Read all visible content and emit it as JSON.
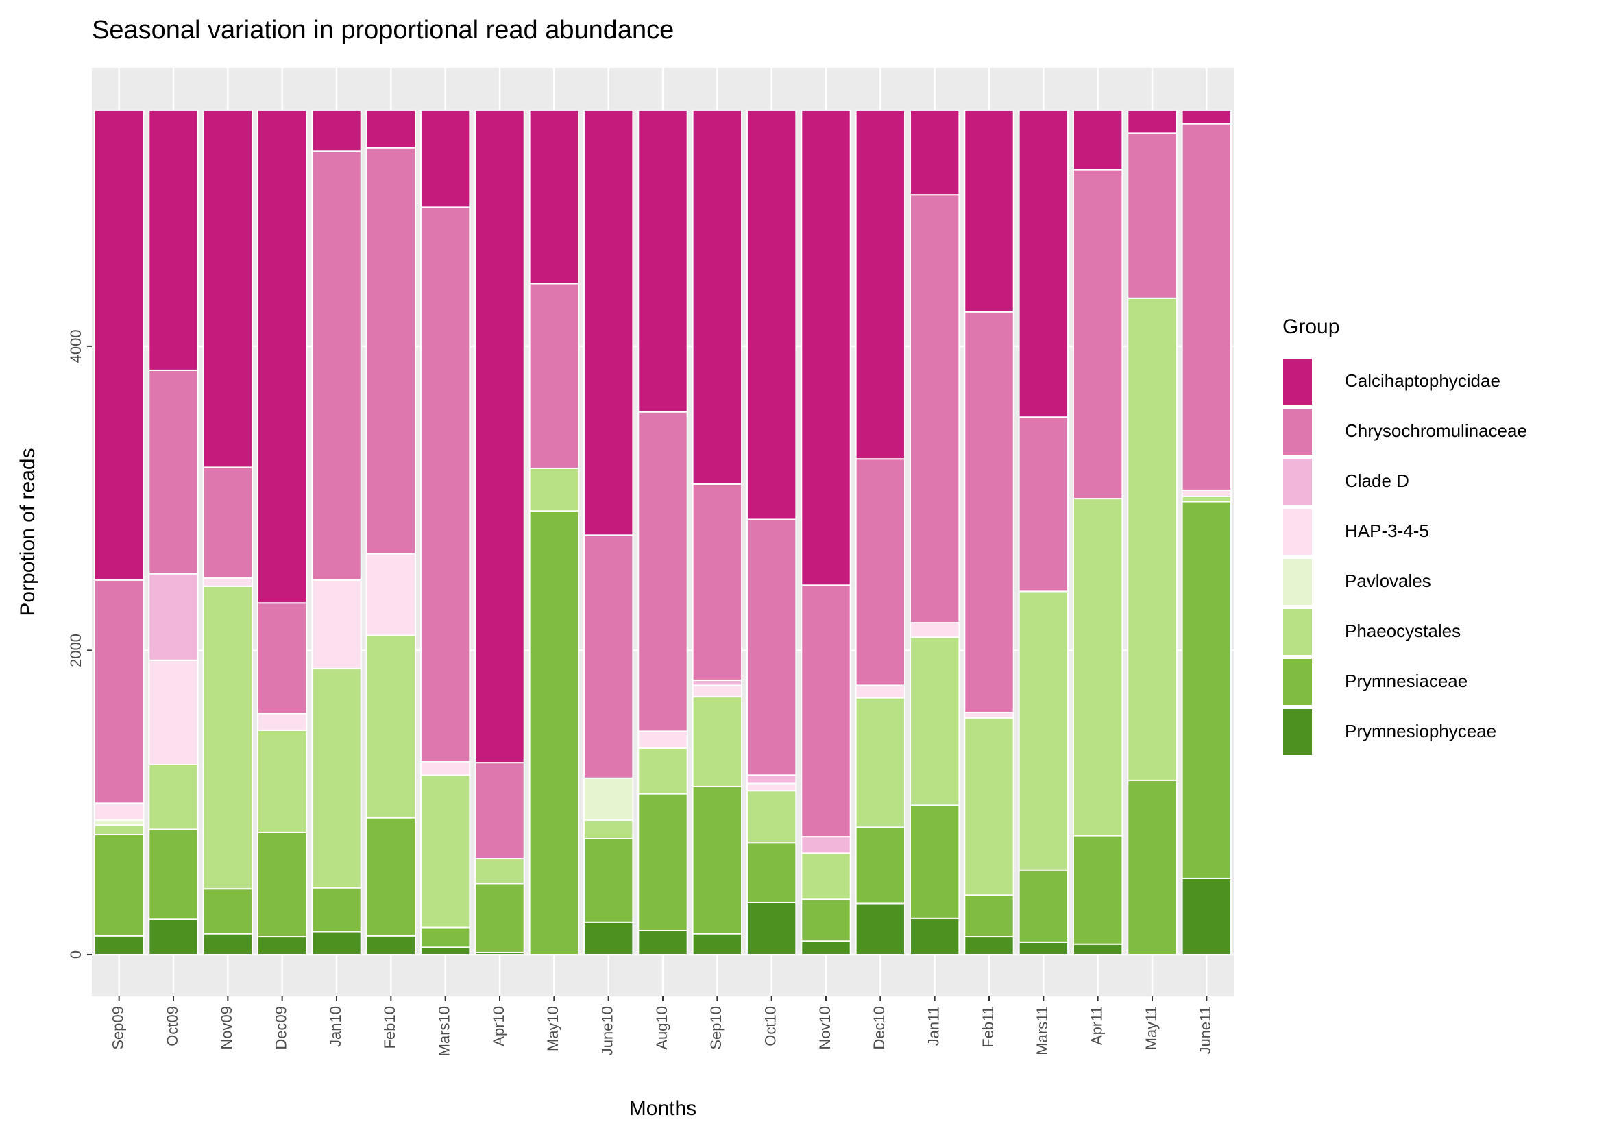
{
  "chart_data": {
    "type": "stacked_bar",
    "title": "Seasonal variation in proportional read abundance",
    "x_label": "Months",
    "y_label": "Porpotion of reads",
    "legend_title": "Group",
    "categories": [
      "Sep09",
      "Oct09",
      "Nov09",
      "Dec09",
      "Jan10",
      "Feb10",
      "Mars10",
      "Apr10",
      "May10",
      "June10",
      "Aug10",
      "Sep10",
      "Oct10",
      "Nov10",
      "Dec10",
      "Jan11",
      "Feb11",
      "Mars11",
      "Apr11",
      "May11",
      "June11"
    ],
    "series": [
      {
        "name": "Prymnesiophyceae",
        "color": "#4d9221",
        "values": [
          123,
          233,
          137,
          117,
          151,
          123,
          48,
          14,
          0,
          213,
          158,
          137,
          343,
          89,
          336,
          240,
          117,
          82,
          69,
          0,
          501
        ]
      },
      {
        "name": "Prymnesiaceae",
        "color": "#7fbc41",
        "values": [
          666,
          590,
          295,
          686,
          288,
          776,
          130,
          453,
          2916,
          549,
          899,
          968,
          391,
          275,
          501,
          741,
          274,
          474,
          713,
          1146,
          2477
        ]
      },
      {
        "name": "Phaeocystales",
        "color": "#b8e186",
        "values": [
          62,
          426,
          1990,
          672,
          1441,
          1200,
          1002,
          164,
          281,
          123,
          301,
          590,
          343,
          302,
          851,
          1105,
          1166,
          1832,
          2216,
          3170,
          34
        ]
      },
      {
        "name": "Pavlovales",
        "color": "#e6f5d0",
        "values": [
          34,
          0,
          0,
          0,
          0,
          0,
          0,
          0,
          0,
          275,
          0,
          0,
          0,
          0,
          0,
          0,
          0,
          0,
          0,
          0,
          0
        ]
      },
      {
        "name": "HAP-3-4-5",
        "color": "#fde0ef",
        "values": [
          110,
          686,
          55,
          110,
          583,
          536,
          89,
          0,
          0,
          0,
          110,
          75,
          48,
          0,
          82,
          96,
          35,
          0,
          0,
          0,
          41
        ]
      },
      {
        "name": "Clade D",
        "color": "#f1b6da",
        "values": [
          0,
          569,
          0,
          0,
          0,
          0,
          0,
          0,
          0,
          0,
          0,
          34,
          55,
          109,
          0,
          0,
          0,
          0,
          0,
          0,
          0
        ]
      },
      {
        "name": "Chrysochromulinaceae",
        "color": "#de77ae",
        "values": [
          1468,
          1338,
          727,
          727,
          2820,
          2669,
          3644,
          631,
          1215,
          1598,
          2100,
          1290,
          1681,
          1654,
          1489,
          2813,
          2634,
          1146,
          2162,
          1084,
          2409
        ]
      },
      {
        "name": "Calcihaptophycidae",
        "color": "#c51b7d",
        "values": [
          3088,
          1709,
          2347,
          3239,
          268,
          247,
          638,
          4289,
          1139,
          2793,
          1983,
          2457,
          2690,
          3122,
          2292,
          556,
          1325,
          2017,
          391,
          151,
          89
        ]
      }
    ],
    "ylim": [
      -275,
      5830
    ],
    "yticks": [
      0,
      2000,
      4000
    ],
    "grid": true
  }
}
